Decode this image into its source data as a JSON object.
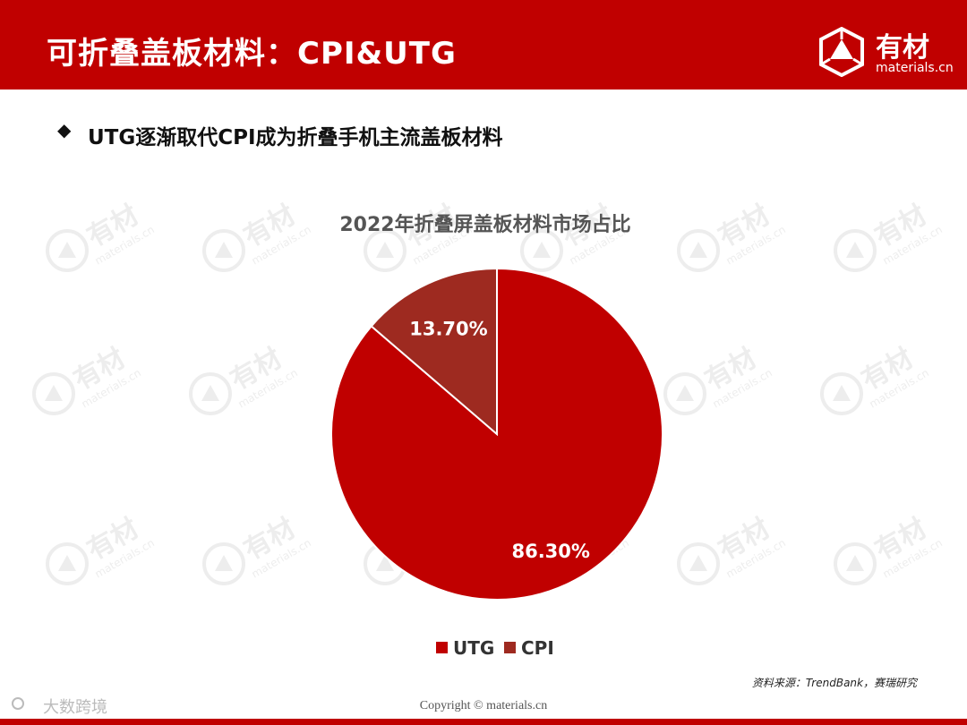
{
  "header": {
    "title": "可折叠盖板材料：CPI&UTG",
    "logo_cn": "有材",
    "logo_en": "materials.cn"
  },
  "section": {
    "bullet": "◆",
    "subtitle": "UTG逐渐取代CPI成为折叠手机主流盖板材料"
  },
  "watermark": {
    "text_cn": "有材",
    "text_en": "materials.cn"
  },
  "chart_data": {
    "type": "pie",
    "title": "2022年折叠屏盖板材料市场占比",
    "categories": [
      "UTG",
      "CPI"
    ],
    "values": [
      86.3,
      13.7
    ],
    "labels": [
      "86.30%",
      "13.70%"
    ],
    "colors": [
      "#c00000",
      "#9e2a20"
    ],
    "legend_position": "bottom"
  },
  "footer": {
    "source": "资料来源：TrendBank，赛瑞研究",
    "copyright": "Copyright © materials.cn",
    "bottom_logo_text": "大数跨境"
  },
  "colors": {
    "brand": "#c00000",
    "text": "#111111"
  }
}
